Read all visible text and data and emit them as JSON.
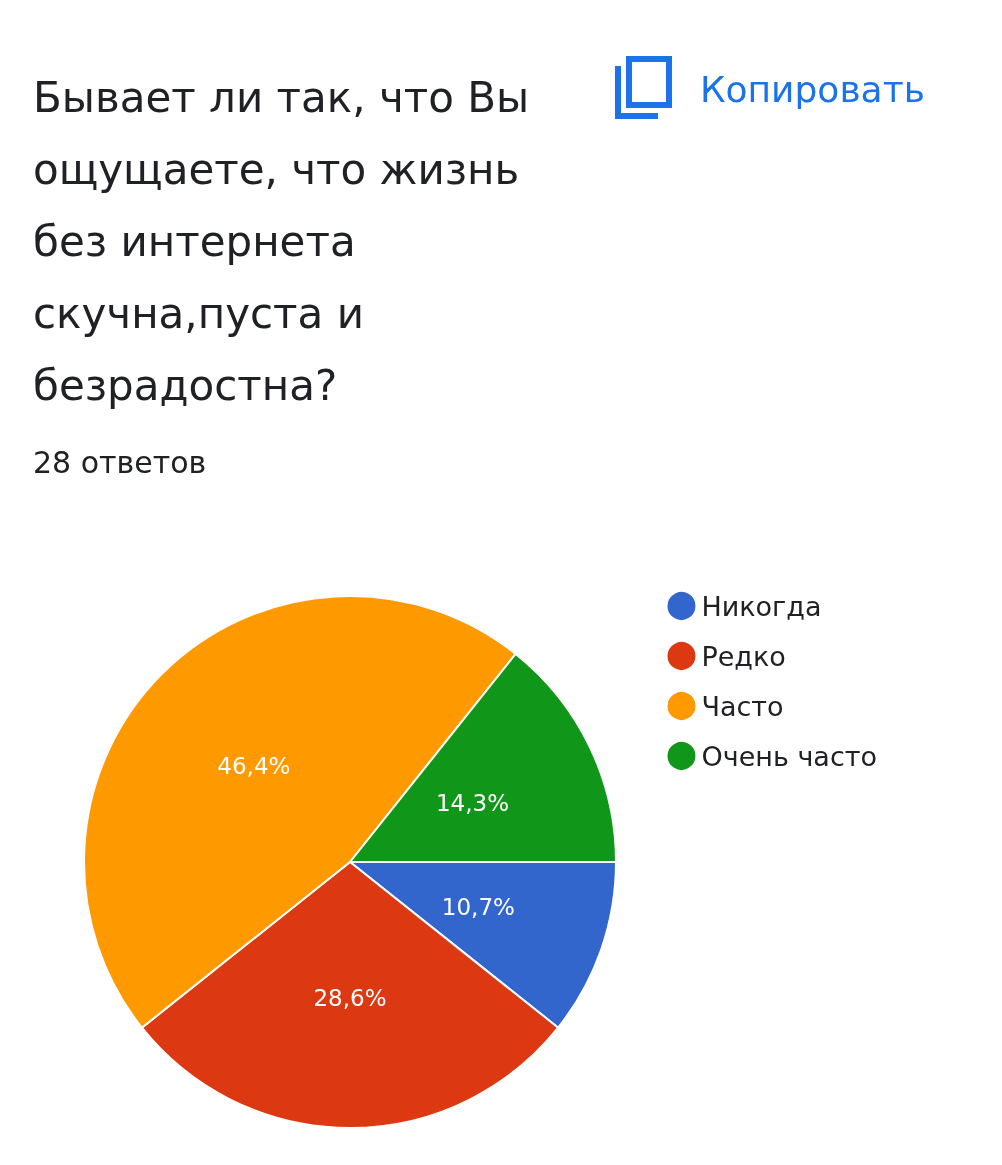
{
  "chart_data": {
    "type": "pie",
    "title": "Бывает ли так, что Вы ощущаете, что жизнь без интернета скучна,пуста и безрадостна?",
    "subtitle": "28 ответов",
    "annotations": [
      "Копировать"
    ],
    "categories": [
      "Никогда",
      "Редко",
      "Часто",
      "Очень часто"
    ],
    "values": [
      10.7,
      28.6,
      46.4,
      14.3
    ],
    "value_labels": [
      "10,7%",
      "28,6%",
      "46,4%",
      "14,3%"
    ],
    "colors": [
      "#3366cc",
      "#dc3912",
      "#ff9900",
      "#109618"
    ],
    "legend": "top right"
  }
}
